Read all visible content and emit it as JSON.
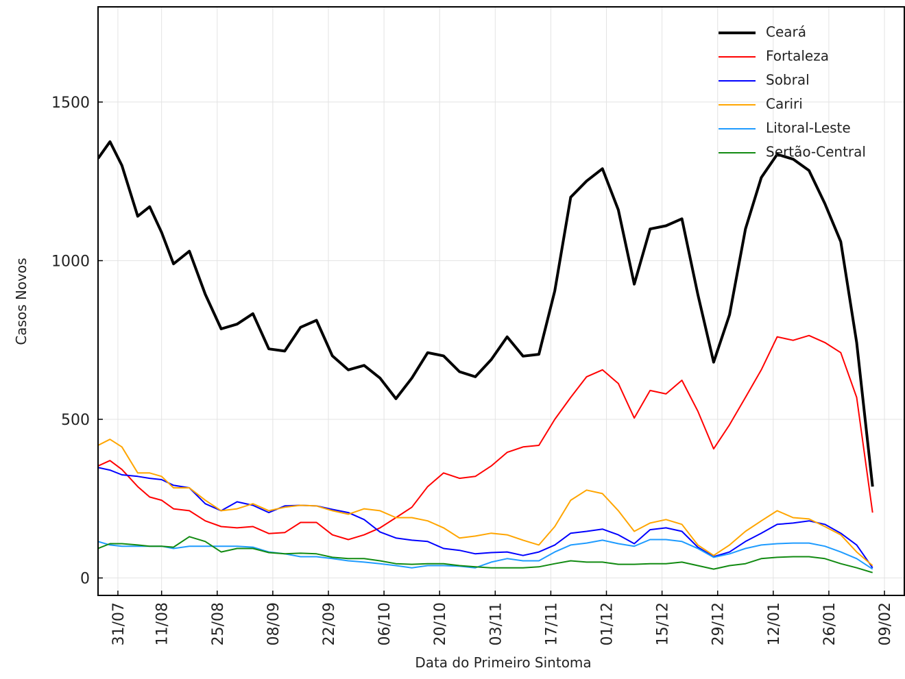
{
  "chart_data": {
    "type": "line",
    "xlabel": "Data do Primeiro Sintoma",
    "ylabel": "Casos Novos",
    "x": [
      "26/07",
      "29/07",
      "01/08",
      "05/08",
      "08/08",
      "11/08",
      "14/08",
      "18/08",
      "22/08",
      "26/08",
      "30/08",
      "03/09",
      "07/09",
      "11/09",
      "15/09",
      "19/09",
      "23/09",
      "27/09",
      "01/10",
      "05/10",
      "09/10",
      "13/10",
      "17/10",
      "21/10",
      "25/10",
      "29/10",
      "02/11",
      "06/11",
      "10/11",
      "14/11",
      "18/11",
      "22/11",
      "26/11",
      "30/11",
      "04/12",
      "08/12",
      "12/12",
      "16/12",
      "20/12",
      "24/12",
      "28/12",
      "01/01",
      "05/01",
      "09/01",
      "13/01",
      "17/01",
      "21/01",
      "25/01",
      "29/01",
      "02/02",
      "06/02"
    ],
    "xlim": [
      "26/07",
      "14/02"
    ],
    "xticks": [
      "31/07",
      "11/08",
      "25/08",
      "08/09",
      "22/09",
      "06/10",
      "20/10",
      "03/11",
      "17/11",
      "01/12",
      "15/12",
      "29/12",
      "12/01",
      "26/01",
      "09/02"
    ],
    "ylim": [
      -55,
      1800
    ],
    "yticks": [
      0,
      500,
      1000,
      1500
    ],
    "grid": true,
    "legend": "upper right",
    "series": [
      {
        "name": "Ceará",
        "color": "#000000",
        "width": 4,
        "values": [
          1322,
          1375,
          1300,
          1140,
          1170,
          1089,
          990,
          1030,
          894,
          785,
          800,
          833,
          722,
          715,
          790,
          812,
          700,
          656,
          670,
          630,
          565,
          630,
          710,
          700,
          650,
          634,
          688,
          760,
          699,
          705,
          905,
          1200,
          1251,
          1290,
          1160,
          926,
          1100,
          1110,
          1132,
          894,
          680,
          830,
          1100,
          1262,
          1335,
          1320,
          1284,
          1180,
          1060,
          742,
          288
        ]
      },
      {
        "name": "Fortaleza",
        "color": "#ff0000",
        "width": 2,
        "values": [
          353,
          370,
          342,
          288,
          255,
          245,
          218,
          212,
          180,
          162,
          158,
          162,
          140,
          143,
          175,
          175,
          136,
          121,
          136,
          158,
          190,
          223,
          288,
          331,
          314,
          320,
          353,
          396,
          413,
          418,
          500,
          569,
          634,
          656,
          613,
          504,
          591,
          580,
          623,
          526,
          407,
          483,
          569,
          656,
          760,
          749,
          764,
          742,
          710,
          569,
          206
        ]
      },
      {
        "name": "Sobral",
        "color": "#0000ff",
        "width": 2,
        "values": [
          348,
          340,
          325,
          320,
          314,
          310,
          292,
          284,
          234,
          212,
          240,
          229,
          206,
          227,
          229,
          227,
          216,
          206,
          184,
          145,
          126,
          119,
          115,
          93,
          87,
          76,
          80,
          82,
          71,
          82,
          104,
          141,
          147,
          154,
          136,
          108,
          152,
          158,
          147,
          97,
          67,
          82,
          115,
          141,
          169,
          173,
          180,
          169,
          141,
          104,
          32
        ]
      },
      {
        "name": "Cariri",
        "color": "#ffa500",
        "width": 2,
        "values": [
          418,
          437,
          413,
          331,
          331,
          320,
          284,
          284,
          245,
          212,
          218,
          234,
          212,
          223,
          229,
          227,
          212,
          201,
          218,
          212,
          190,
          190,
          180,
          158,
          126,
          132,
          141,
          136,
          119,
          104,
          162,
          245,
          277,
          266,
          212,
          147,
          173,
          184,
          169,
          104,
          71,
          104,
          147,
          180,
          212,
          190,
          186,
          162,
          136,
          82,
          39
        ]
      },
      {
        "name": "Litoral-Leste",
        "color": "#1e9bff",
        "width": 2,
        "values": [
          115,
          104,
          100,
          100,
          100,
          100,
          93,
          100,
          100,
          100,
          100,
          97,
          82,
          76,
          67,
          67,
          61,
          54,
          50,
          45,
          39,
          32,
          39,
          39,
          37,
          32,
          50,
          61,
          54,
          54,
          82,
          104,
          110,
          119,
          108,
          100,
          121,
          121,
          115,
          93,
          65,
          76,
          93,
          104,
          108,
          110,
          110,
          100,
          82,
          61,
          28
        ]
      },
      {
        "name": "Sertão-Central",
        "color": "#118a11",
        "width": 2,
        "values": [
          93,
          108,
          108,
          104,
          100,
          100,
          97,
          130,
          115,
          82,
          93,
          93,
          80,
          76,
          78,
          76,
          65,
          61,
          61,
          54,
          45,
          43,
          45,
          45,
          39,
          35,
          32,
          32,
          32,
          35,
          45,
          54,
          50,
          50,
          43,
          43,
          45,
          45,
          50,
          39,
          28,
          39,
          45,
          61,
          65,
          67,
          67,
          61,
          45,
          32,
          17
        ]
      }
    ]
  }
}
